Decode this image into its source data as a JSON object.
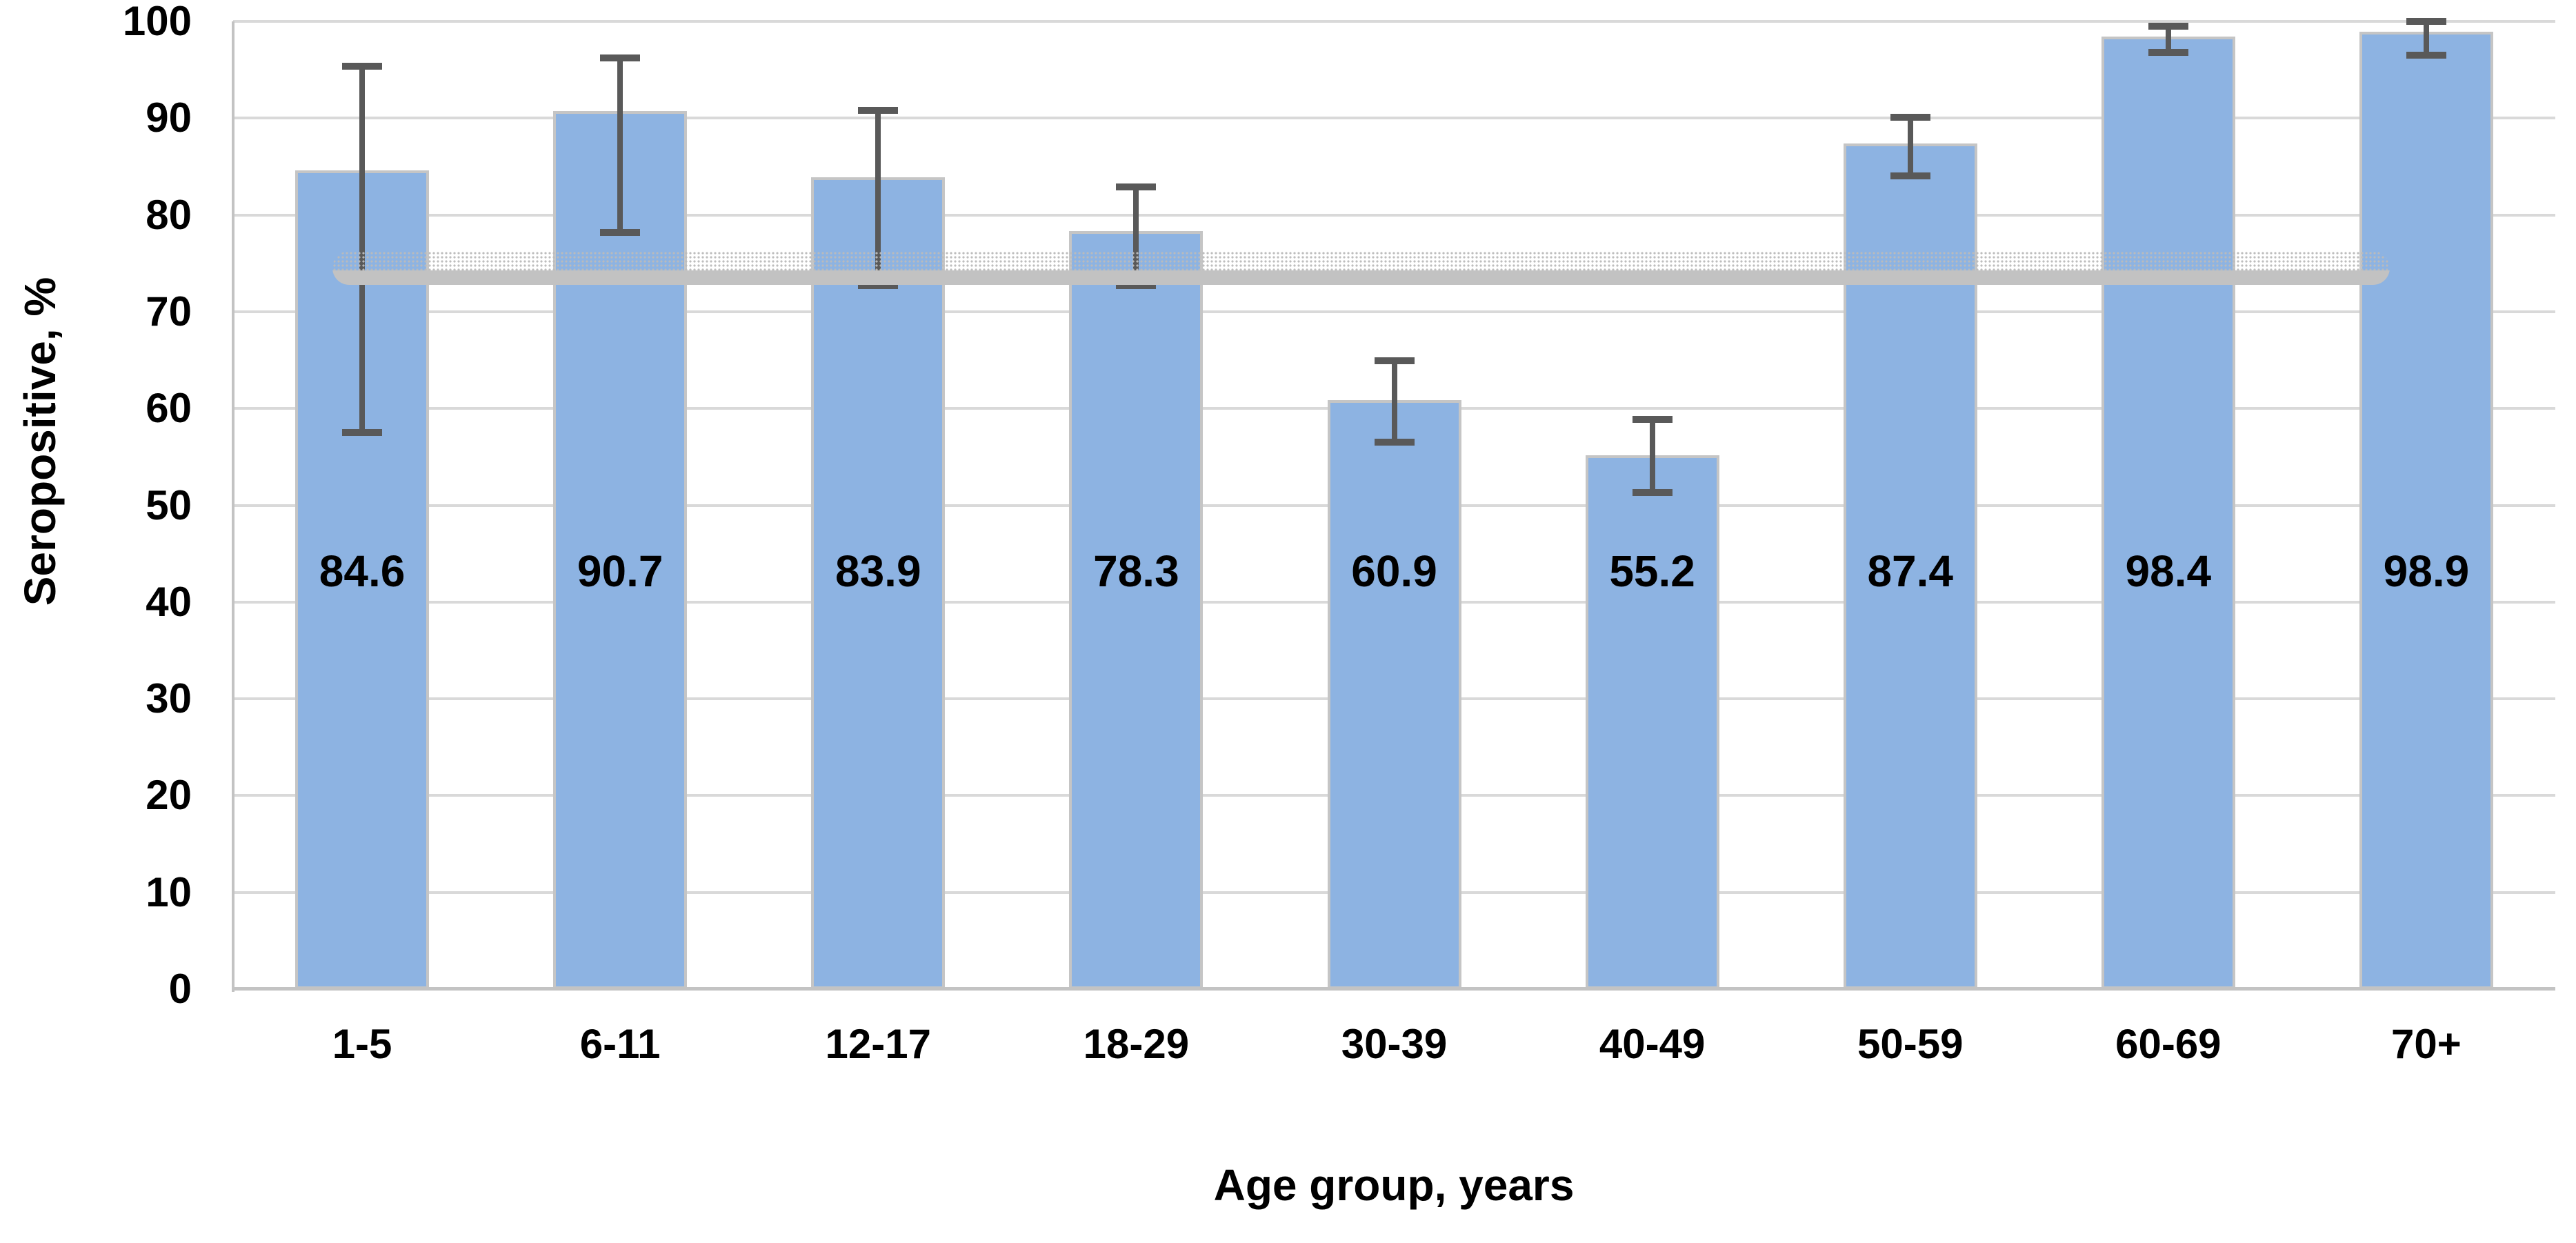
{
  "chart_data": {
    "type": "bar",
    "title": "",
    "categories": [
      "1-5",
      "6-11",
      "12-17",
      "18-29",
      "30-39",
      "40-49",
      "50-59",
      "60-69",
      "70+"
    ],
    "series": [
      {
        "name": "Seropositive",
        "values": [
          84.6,
          90.7,
          83.9,
          78.3,
          60.9,
          55.2,
          87.4,
          98.4,
          98.9
        ],
        "data_labels": [
          "84.6",
          "90.7",
          "83.9",
          "78.3",
          "60.9",
          "55.2",
          "87.4",
          "98.4",
          "98.9"
        ],
        "error_low": [
          57.5,
          78.2,
          72.7,
          72.7,
          56.5,
          51.3,
          84.0,
          96.8,
          96.5
        ],
        "error_high": [
          95.4,
          96.2,
          90.8,
          82.9,
          64.9,
          58.9,
          90.1,
          99.5,
          100.0
        ]
      }
    ],
    "xlabel": "Age group, years",
    "ylabel": "Seropositive, %",
    "ylim": [
      0,
      100
    ],
    "yticks": [
      0,
      10,
      20,
      30,
      40,
      50,
      60,
      70,
      80,
      90,
      100
    ],
    "grid": "horizontal-only",
    "legend": "none",
    "reference_band": {
      "y_low": 72.8,
      "y_high": 76.3,
      "description": "horizontal gray band (dotted top, solid bottom) spanning all age groups",
      "color": "#c2c2c2"
    }
  },
  "colors": {
    "background": "#ffffff",
    "bar_fill": "#8db3e2",
    "bar_border": "#c5c5c5",
    "gridline": "#d9d9d9",
    "axis_line": "#c3c3c3",
    "error_bar": "#595959",
    "band_solid": "#c2c2c2",
    "band_dots": "#bbbbbb",
    "text": "#000000"
  }
}
